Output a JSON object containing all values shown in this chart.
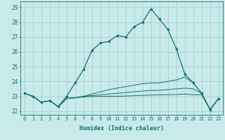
{
  "xlabel": "Humidex (Indice chaleur)",
  "ylabel": "",
  "background_color": "#c8eaea",
  "grid_color": "#a0c8c8",
  "line_color": "#1a7070",
  "xlim": [
    -0.5,
    23.5
  ],
  "ylim": [
    21.75,
    29.4
  ],
  "yticks": [
    22,
    23,
    24,
    25,
    26,
    27,
    28,
    29
  ],
  "xticks": [
    0,
    1,
    2,
    3,
    4,
    5,
    6,
    7,
    8,
    9,
    10,
    11,
    12,
    13,
    14,
    15,
    16,
    17,
    18,
    19,
    20,
    21,
    22,
    23
  ],
  "curve1_x": [
    0,
    1,
    2,
    3,
    4,
    5,
    6,
    7,
    8,
    9,
    10,
    11,
    12,
    13,
    14,
    15,
    16,
    17,
    18,
    19,
    20,
    21,
    22,
    23
  ],
  "curve1_y": [
    23.2,
    23.0,
    22.6,
    22.7,
    22.3,
    23.0,
    23.9,
    24.8,
    26.1,
    26.6,
    26.7,
    27.1,
    27.0,
    27.7,
    28.0,
    28.9,
    28.2,
    27.5,
    26.2,
    24.5,
    23.9,
    23.2,
    22.1,
    22.85
  ],
  "curve2_x": [
    0,
    1,
    2,
    3,
    4,
    5,
    6,
    7,
    8,
    9,
    10,
    11,
    12,
    13,
    14,
    15,
    16,
    17,
    18,
    19,
    20,
    21,
    22,
    23
  ],
  "curve2_y": [
    23.2,
    23.0,
    22.6,
    22.7,
    22.3,
    22.85,
    22.9,
    23.0,
    23.15,
    23.3,
    23.45,
    23.55,
    23.65,
    23.75,
    23.85,
    23.9,
    23.9,
    24.0,
    24.1,
    24.3,
    23.9,
    23.2,
    22.1,
    22.85
  ],
  "curve3_x": [
    0,
    1,
    2,
    3,
    4,
    5,
    6,
    7,
    8,
    9,
    10,
    11,
    12,
    13,
    14,
    15,
    16,
    17,
    18,
    19,
    20,
    21,
    22,
    23
  ],
  "curve3_y": [
    23.2,
    23.0,
    22.6,
    22.7,
    22.3,
    22.85,
    22.9,
    23.0,
    23.05,
    23.1,
    23.15,
    23.2,
    23.25,
    23.3,
    23.35,
    23.4,
    23.4,
    23.45,
    23.5,
    23.55,
    23.5,
    23.2,
    22.1,
    22.85
  ],
  "curve4_x": [
    0,
    1,
    2,
    3,
    4,
    5,
    6,
    7,
    8,
    9,
    10,
    11,
    12,
    13,
    14,
    15,
    16,
    17,
    18,
    19,
    20,
    21,
    22,
    23
  ],
  "curve4_y": [
    23.2,
    23.0,
    22.6,
    22.7,
    22.3,
    22.85,
    22.9,
    22.95,
    22.98,
    23.0,
    23.0,
    23.0,
    23.02,
    23.04,
    23.06,
    23.08,
    23.1,
    23.1,
    23.12,
    23.15,
    23.1,
    23.1,
    22.1,
    22.85
  ],
  "marker_x": [
    0,
    1,
    2,
    3,
    4,
    5,
    6,
    7,
    8,
    9,
    10,
    11,
    12,
    13,
    14,
    15,
    16,
    17,
    18,
    19,
    20,
    21,
    22,
    23
  ],
  "marker_y": [
    23.2,
    23.0,
    22.6,
    22.7,
    22.3,
    23.0,
    23.9,
    24.8,
    26.1,
    26.6,
    26.7,
    27.1,
    27.0,
    27.7,
    28.0,
    28.9,
    28.2,
    27.5,
    26.2,
    24.5,
    23.9,
    23.2,
    22.1,
    22.85
  ]
}
